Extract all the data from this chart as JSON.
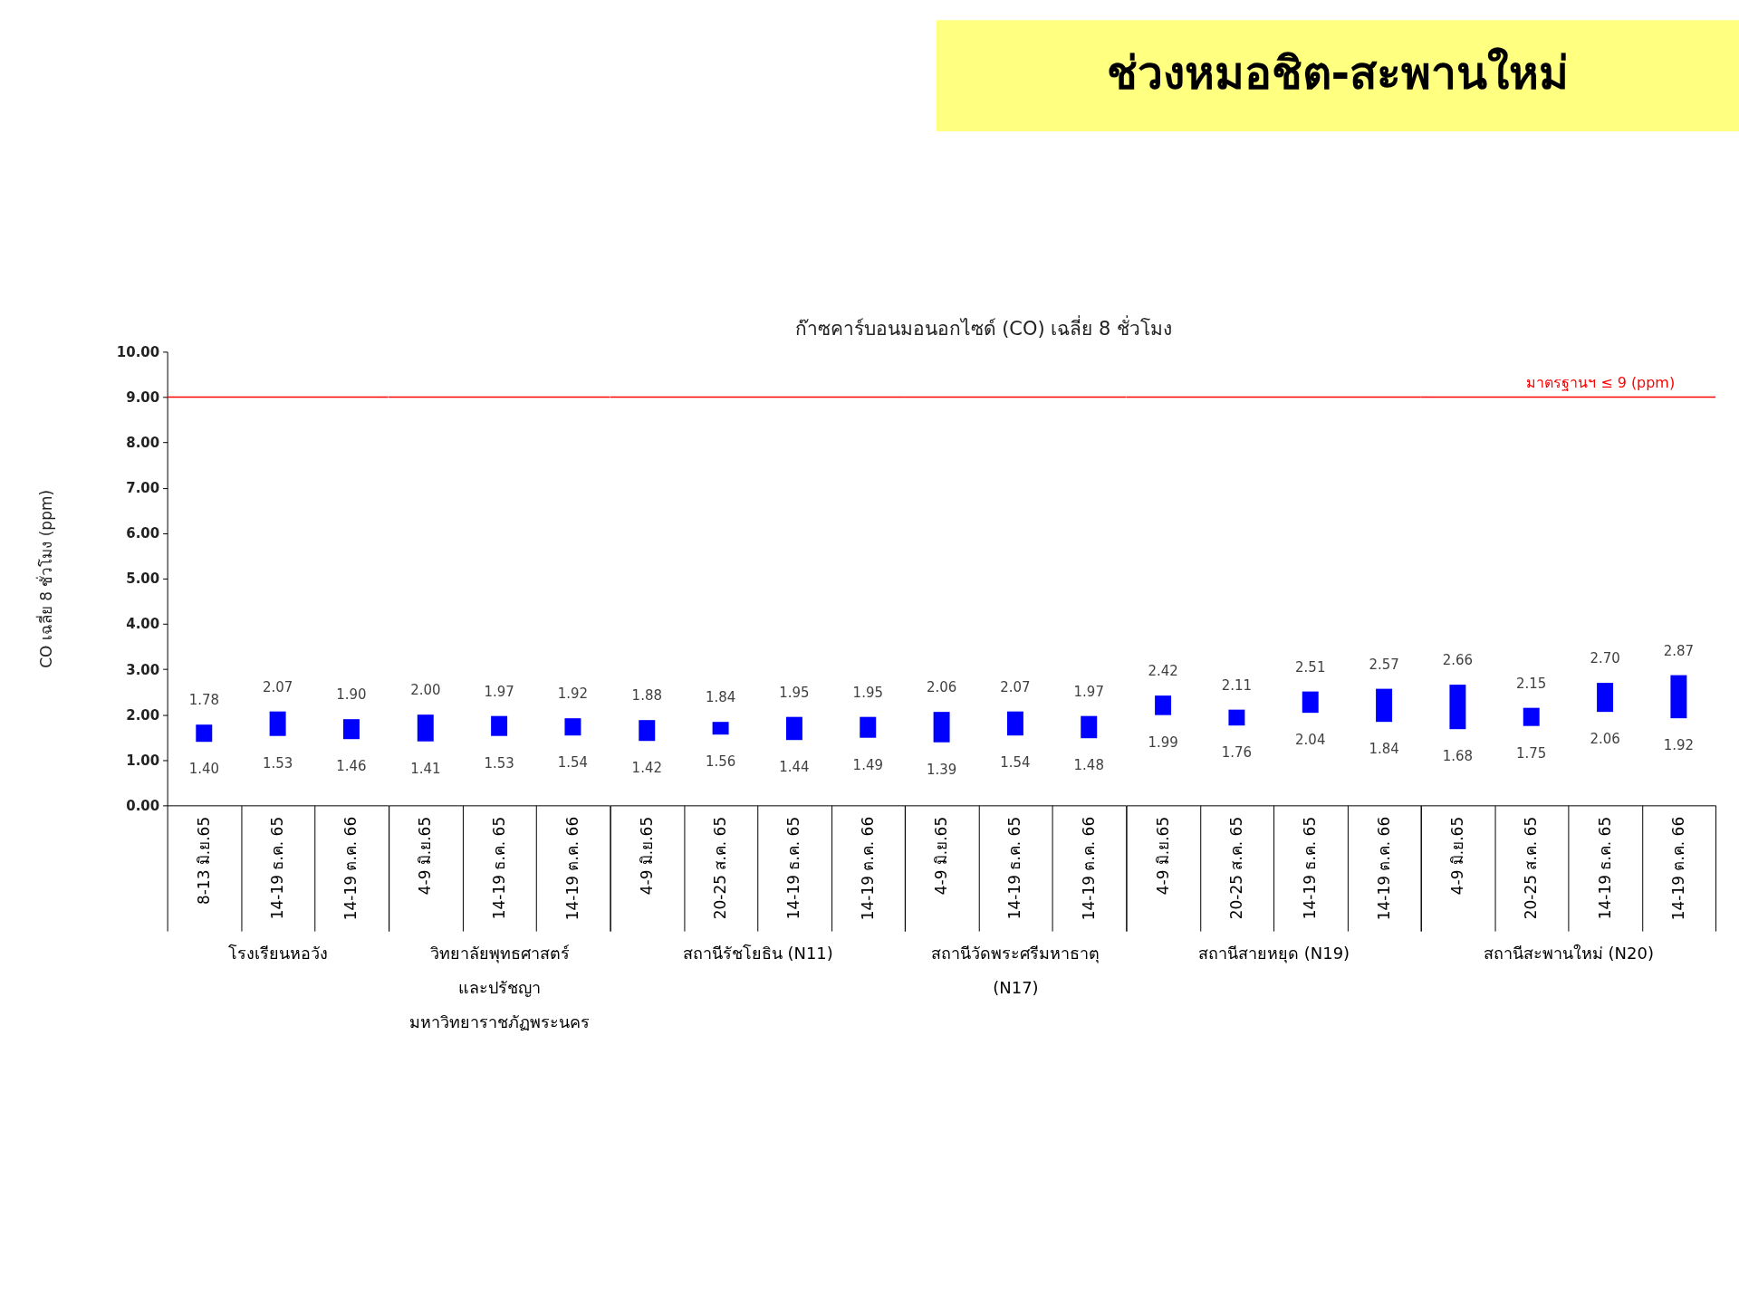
{
  "chart_data": [
    {
      "type": "other",
      "title": "ช่วงหมอชิต-สะพานใหม่",
      "subtitle": "ก๊าซคาร์บอนมอนอกไซด์ (CO) เฉลี่ย 8 ชั่วโมง"
    },
    {
      "type": "bar",
      "ylabel": "CO เฉลี่ย 8 ชั่วโมง (ppm)",
      "xlabel": "โรงเรียนหอวัง",
      "categories": [
        "8-13 มิ.ย.65",
        "14-19 ธ.ค. 65",
        "14-19 ต.ค. 66"
      ],
      "base": [
        1.4,
        1.53,
        1.46
      ],
      "values": [
        0.38,
        0.54,
        0.44
      ],
      "value_labels": [
        "1.78",
        "2.07",
        "1.90"
      ],
      "annotations": [
        {
          "text": "1.40",
          "x": "8-13 มิ.ย.65",
          "y": 1.4
        },
        {
          "text": "1.53",
          "x": "14-19 ธ.ค. 65",
          "y": 1.53
        },
        {
          "text": "1.46",
          "x": "14-19 ต.ค. 66",
          "y": 1.46
        }
      ],
      "color": "#0000ff",
      "ylim": [
        0,
        10
      ],
      "yticks": [
        {
          "value": 0,
          "label": "0.00"
        },
        {
          "value": 1,
          "label": "1.00"
        },
        {
          "value": 2,
          "label": "2.00"
        },
        {
          "value": 3,
          "label": "3.00"
        },
        {
          "value": 4,
          "label": "4.00"
        },
        {
          "value": 5,
          "label": "5.00"
        },
        {
          "value": 6,
          "label": "6.00"
        },
        {
          "value": 7,
          "label": "7.00"
        },
        {
          "value": 8,
          "label": "8.00"
        },
        {
          "value": 9,
          "label": "9.00"
        },
        {
          "value": 10,
          "label": "10.00"
        }
      ],
      "ref_lines": [
        {
          "axis": "y",
          "value": 9,
          "color": "#ff0000"
        }
      ]
    },
    {
      "type": "bar",
      "xlabel": "วิทยาลัยพุทธศาสตร์ และปรัชญา มหาวิทยาราชภัฏพระนคร",
      "categories": [
        "4-9 มิ.ย.65",
        "14-19 ธ.ค. 65",
        "14-19 ต.ค. 66"
      ],
      "base": [
        1.41,
        1.53,
        1.54
      ],
      "values": [
        0.59,
        0.44,
        0.38
      ],
      "value_labels": [
        "2.00",
        "1.97",
        "1.92"
      ],
      "annotations": [
        {
          "text": "1.41",
          "x": "4-9 มิ.ย.65",
          "y": 1.41
        },
        {
          "text": "1.53",
          "x": "14-19 ธ.ค. 65",
          "y": 1.53
        },
        {
          "text": "1.54",
          "x": "14-19 ต.ค. 66",
          "y": 1.54
        }
      ],
      "color": "#0000ff",
      "ylim": [
        0,
        10
      ],
      "ref_lines": [
        {
          "axis": "y",
          "value": 9,
          "color": "#ff0000"
        }
      ],
      "tick_labels": "x"
    },
    {
      "type": "bar",
      "xlabel": "สถานีรัชโยธิน (N11)",
      "categories": [
        "4-9 มิ.ย.65",
        "20-25 ส.ค. 65",
        "14-19 ธ.ค. 65",
        "14-19 ต.ค. 66"
      ],
      "base": [
        1.42,
        1.56,
        1.44,
        1.49
      ],
      "values": [
        0.46,
        0.28,
        0.51,
        0.46
      ],
      "value_labels": [
        "1.88",
        "1.84",
        "1.95",
        "1.95"
      ],
      "annotations": [
        {
          "text": "1.42",
          "x": "4-9 มิ.ย.65",
          "y": 1.42
        },
        {
          "text": "1.56",
          "x": "20-25 ส.ค. 65",
          "y": 1.56
        },
        {
          "text": "1.44",
          "x": "14-19 ธ.ค. 65",
          "y": 1.44
        },
        {
          "text": "1.49",
          "x": "14-19 ต.ค. 66",
          "y": 1.49
        }
      ],
      "color": "#0000ff",
      "ylim": [
        0,
        10
      ],
      "ref_lines": [
        {
          "axis": "y",
          "value": 9,
          "color": "#ff0000"
        }
      ],
      "tick_labels": "x"
    },
    {
      "type": "bar",
      "xlabel": "สถานีวัดพระศรีมหาธาตุ (N17)",
      "categories": [
        "4-9 มิ.ย.65",
        "14-19 ธ.ค. 65",
        "14-19 ต.ค. 66"
      ],
      "base": [
        1.39,
        1.54,
        1.48
      ],
      "values": [
        0.67,
        0.53,
        0.49
      ],
      "value_labels": [
        "2.06",
        "2.07",
        "1.97"
      ],
      "annotations": [
        {
          "text": "1.39",
          "x": "4-9 มิ.ย.65",
          "y": 1.39
        },
        {
          "text": "1.54",
          "x": "14-19 ธ.ค. 65",
          "y": 1.54
        },
        {
          "text": "1.48",
          "x": "14-19 ต.ค. 66",
          "y": 1.48
        }
      ],
      "color": "#0000ff",
      "ylim": [
        0,
        10
      ],
      "ref_lines": [
        {
          "axis": "y",
          "value": 9,
          "color": "#ff0000"
        }
      ],
      "tick_labels": "x"
    },
    {
      "type": "bar",
      "xlabel": "สถานีสายหยุด (N19)",
      "categories": [
        "4-9 มิ.ย.65",
        "20-25 ส.ค. 65",
        "14-19 ธ.ค. 65",
        "14-19 ต.ค. 66"
      ],
      "base": [
        1.99,
        1.76,
        2.04,
        1.84
      ],
      "values": [
        0.43,
        0.35,
        0.47,
        0.73
      ],
      "value_labels": [
        "2.42",
        "2.11",
        "2.51",
        "2.57"
      ],
      "annotations": [
        {
          "text": "1.99",
          "x": "4-9 มิ.ย.65",
          "y": 1.99
        },
        {
          "text": "1.76",
          "x": "20-25 ส.ค. 65",
          "y": 1.76
        },
        {
          "text": "2.04",
          "x": "14-19 ธ.ค. 65",
          "y": 2.04
        },
        {
          "text": "1.84",
          "x": "14-19 ต.ค. 66",
          "y": 1.84
        }
      ],
      "color": "#0000ff",
      "ylim": [
        0,
        10
      ],
      "ref_lines": [
        {
          "axis": "y",
          "value": 9,
          "color": "#ff0000"
        }
      ],
      "tick_labels": "x"
    },
    {
      "type": "bar",
      "xlabel": "สถานีสะพานใหม่ (N20)",
      "categories": [
        "4-9 มิ.ย.65",
        "20-25 ส.ค. 65",
        "14-19 ธ.ค. 65",
        "14-19 ต.ค. 66"
      ],
      "base": [
        1.68,
        1.75,
        2.06,
        1.92
      ],
      "values": [
        0.98,
        0.4,
        0.64,
        0.95
      ],
      "value_labels": [
        "2.66",
        "2.15",
        "2.70",
        "2.87"
      ],
      "annotations": [
        {
          "text": "1.68",
          "x": "4-9 มิ.ย.65",
          "y": 1.68
        },
        {
          "text": "1.75",
          "x": "20-25 ส.ค. 65",
          "y": 1.75
        },
        {
          "text": "2.06",
          "x": "14-19 ธ.ค. 65",
          "y": 2.06
        },
        {
          "text": "1.92",
          "x": "14-19 ต.ค. 66",
          "y": 1.92
        }
      ],
      "color": "#0000ff",
      "ylim": [
        0,
        10
      ],
      "ref_lines": [
        {
          "axis": "y",
          "value": 9,
          "color": "#ff0000",
          "label": "มาตรฐานฯ ≤ 9 (ppm)"
        }
      ],
      "tick_labels": "x"
    }
  ]
}
